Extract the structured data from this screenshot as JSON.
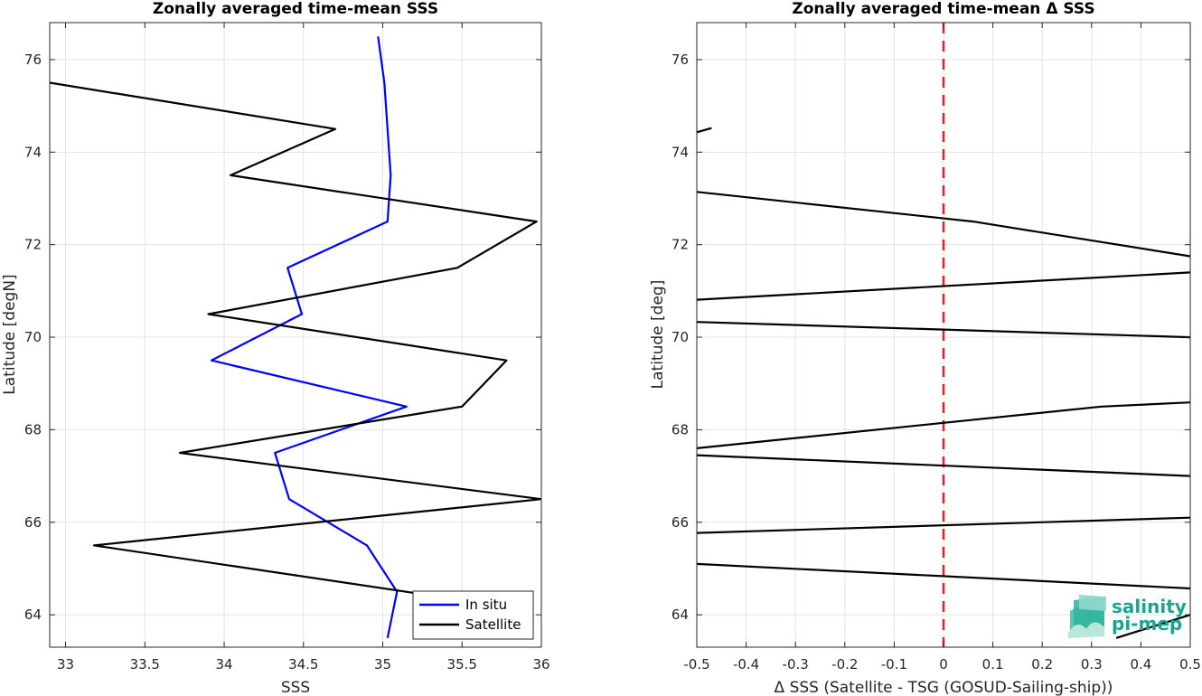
{
  "chart_data": [
    {
      "type": "line",
      "title": "Zonally averaged time-mean SSS",
      "xlabel": "SSS",
      "ylabel": "Latitude [degN]",
      "xlim": [
        32.9,
        36.0
      ],
      "ylim": [
        63.3,
        76.8
      ],
      "xticks": [
        33,
        33.5,
        34,
        34.5,
        35,
        35.5,
        36
      ],
      "xtick_labels": [
        "33",
        "33.5",
        "34",
        "34.5",
        "35",
        "35.5",
        "36"
      ],
      "yticks": [
        64,
        66,
        68,
        70,
        72,
        74,
        76
      ],
      "ytick_labels": [
        "64",
        "66",
        "68",
        "70",
        "72",
        "74",
        "76"
      ],
      "grid": true,
      "legend_position": "bottom-right",
      "series": [
        {
          "name": "In situ",
          "color": "#0000ff",
          "x": [
            35.03,
            35.09,
            34.9,
            34.41,
            34.32,
            35.15,
            33.92,
            34.49,
            34.4,
            35.03,
            35.05,
            35.03,
            35.01,
            34.97
          ],
          "y": [
            63.5,
            64.5,
            65.5,
            66.5,
            67.5,
            68.5,
            69.5,
            70.5,
            71.5,
            72.5,
            73.5,
            74.5,
            75.5,
            76.5
          ]
        },
        {
          "name": "Satellite",
          "color": "#000000",
          "x": [
            35.34,
            33.18,
            36.0,
            33.72,
            35.5,
            35.78,
            33.9,
            35.47,
            35.97,
            34.04,
            34.7,
            32.9
          ],
          "y": [
            64.4,
            65.5,
            66.5,
            67.5,
            68.5,
            69.5,
            70.5,
            71.5,
            72.5,
            73.5,
            74.5,
            75.5
          ]
        }
      ]
    },
    {
      "type": "line",
      "title": "Zonally averaged time-mean Δ SSS",
      "xlabel": "Δ SSS (Satellite - TSG (GOSUD-Sailing-ship))",
      "ylabel": "Latitude [deg]",
      "xlim": [
        -0.5,
        0.5
      ],
      "ylim": [
        63.3,
        76.8
      ],
      "xticks": [
        -0.5,
        -0.4,
        -0.3,
        -0.2,
        -0.1,
        0,
        0.1,
        0.2,
        0.3,
        0.4,
        0.5
      ],
      "xtick_labels": [
        "-0.5",
        "-0.4",
        "-0.3",
        "-0.2",
        "-0.1",
        "0",
        "0.1",
        "0.2",
        "0.3",
        "0.4",
        "0.5"
      ],
      "yticks": [
        64,
        66,
        68,
        70,
        72,
        74,
        76
      ],
      "ytick_labels": [
        "64",
        "66",
        "68",
        "70",
        "72",
        "74",
        "76"
      ],
      "grid": true,
      "reference_line": {
        "x": 0,
        "color": "#e8201f",
        "style": "dashed"
      },
      "series": [
        {
          "color": "#000000",
          "segments": [
            {
              "x": [
                -0.5,
                -0.47
              ],
              "y": [
                74.43,
                74.52
              ]
            },
            {
              "x": [
                -0.5,
                0.06,
                0.5
              ],
              "y": [
                73.14,
                72.5,
                71.75
              ]
            },
            {
              "x": [
                -0.5,
                0.5
              ],
              "y": [
                70.81,
                71.4
              ]
            },
            {
              "x": [
                -0.5,
                0.5
              ],
              "y": [
                70.33,
                70.0
              ]
            },
            {
              "x": [
                -0.5,
                0.32,
                0.5
              ],
              "y": [
                67.6,
                68.5,
                68.59
              ]
            },
            {
              "x": [
                -0.5,
                0.5
              ],
              "y": [
                67.45,
                67.0
              ]
            },
            {
              "x": [
                -0.5,
                0.5
              ],
              "y": [
                65.77,
                66.1
              ]
            },
            {
              "x": [
                -0.5,
                0.5
              ],
              "y": [
                65.1,
                64.57
              ]
            },
            {
              "x": [
                0.35,
                0.5
              ],
              "y": [
                63.5,
                64.0
              ]
            }
          ]
        }
      ]
    }
  ],
  "logo": {
    "line1": "salinity",
    "line2": "pi-mep"
  }
}
